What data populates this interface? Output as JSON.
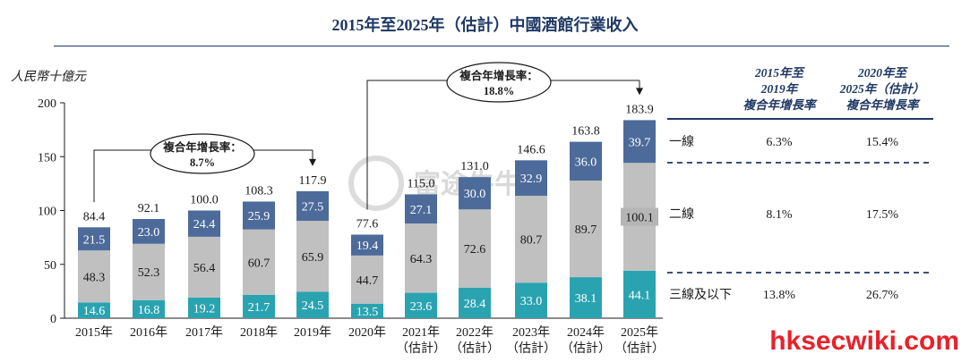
{
  "title": "2015年至2025年（估計）中國酒館行業收入",
  "watermark": "富途牛牛",
  "site_watermark": "hksecwiki.com",
  "colors": {
    "tier1": "#4d6b9a",
    "tier2": "#c0c0c0",
    "tier3": "#2aa3b1",
    "title": "#1f3864",
    "divider": "#1f3864"
  },
  "chart_data": {
    "type": "bar",
    "stacked": true,
    "unit_label": "人民幣十億元",
    "ylim": [
      0,
      200
    ],
    "yticks": [
      0,
      50,
      100,
      150,
      200
    ],
    "categories": [
      [
        "2015年"
      ],
      [
        "2016年"
      ],
      [
        "2017年"
      ],
      [
        "2018年"
      ],
      [
        "2019年"
      ],
      [
        "2020年"
      ],
      [
        "2021年",
        "（估計）"
      ],
      [
        "2022年",
        "（估計）"
      ],
      [
        "2023年",
        "（估計）"
      ],
      [
        "2024年",
        "（估計）"
      ],
      [
        "2025年",
        "（估計）"
      ]
    ],
    "series": [
      {
        "name": "三線及以下",
        "color": "#2aa3b1",
        "label_color": "#ffffff",
        "values": [
          14.6,
          16.8,
          19.2,
          21.7,
          24.5,
          13.5,
          23.6,
          28.4,
          33.0,
          38.1,
          44.1
        ]
      },
      {
        "name": "二線",
        "color": "#c0c0c0",
        "label_color": "#1a1a1a",
        "values": [
          48.3,
          52.3,
          56.4,
          60.7,
          65.9,
          44.7,
          64.3,
          72.6,
          80.7,
          89.7,
          100.1
        ]
      },
      {
        "name": "一線",
        "color": "#4d6b9a",
        "label_color": "#ffffff",
        "values": [
          21.5,
          23.0,
          24.4,
          25.9,
          27.5,
          19.4,
          27.1,
          30.0,
          32.9,
          36.0,
          39.7
        ]
      }
    ],
    "totals": [
      84.4,
      92.1,
      100.0,
      108.3,
      117.9,
      77.6,
      115.0,
      131.0,
      146.6,
      163.8,
      183.9
    ],
    "cagr_callouts": [
      {
        "label": "複合年增長率：",
        "value": "8.7%",
        "from_index": 0,
        "to_index": 4
      },
      {
        "label": "複合年增長率：",
        "value": "18.8%",
        "from_index": 5,
        "to_index": 10
      }
    ],
    "cagr_table": {
      "headers": [
        [
          "2015年至",
          "2019年",
          "複合年增長率"
        ],
        [
          "2020年至",
          "2025年（估計）",
          "複合年增長率"
        ]
      ],
      "rows": [
        {
          "label": "一線",
          "cagr_2015_2019": "6.3%",
          "cagr_2020_2025": "15.4%"
        },
        {
          "label": "二線",
          "cagr_2015_2019": "8.1%",
          "cagr_2020_2025": "17.5%"
        },
        {
          "label": "三線及以下",
          "cagr_2015_2019": "13.8%",
          "cagr_2020_2025": "26.7%"
        }
      ]
    }
  }
}
